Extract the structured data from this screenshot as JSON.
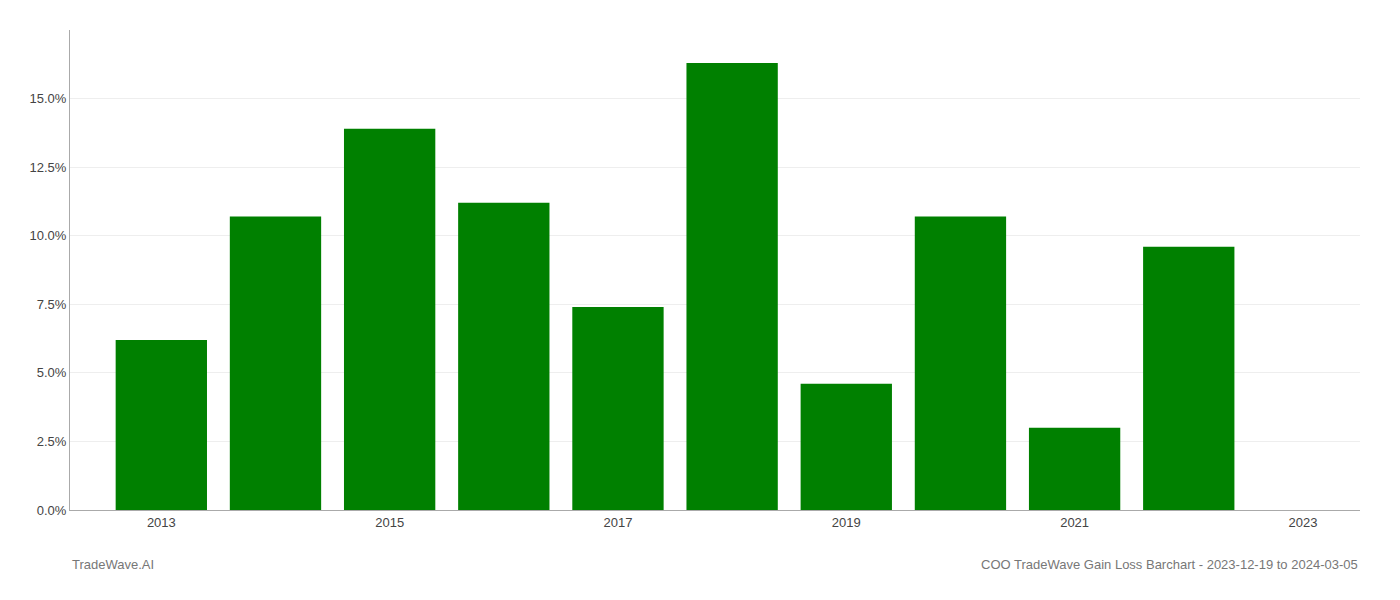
{
  "chart_data": {
    "type": "bar",
    "x": [
      2013,
      2014,
      2015,
      2016,
      2017,
      2018,
      2019,
      2020,
      2021,
      2022
    ],
    "values": [
      0.062,
      0.107,
      0.139,
      0.112,
      0.074,
      0.163,
      0.046,
      0.107,
      0.03,
      0.096
    ],
    "color": "#008000",
    "xlim": [
      2012.2,
      2023.5
    ],
    "xticks": [
      2013,
      2015,
      2017,
      2019,
      2021,
      2023
    ],
    "ylim": [
      0,
      0.175
    ],
    "yticks": [
      {
        "value": 0.0,
        "label": "0.0%"
      },
      {
        "value": 0.025,
        "label": "2.5%"
      },
      {
        "value": 0.05,
        "label": "5.0%"
      },
      {
        "value": 0.075,
        "label": "7.5%"
      },
      {
        "value": 0.1,
        "label": "10.0%"
      },
      {
        "value": 0.125,
        "label": "12.5%"
      },
      {
        "value": 0.15,
        "label": "15.0%"
      }
    ],
    "grid": true,
    "annotations": [
      {
        "text": "TradeWave.AI"
      },
      {
        "text": "COO TradeWave Gain Loss Barchart - 2023-12-19 to 2024-03-05"
      }
    ]
  }
}
